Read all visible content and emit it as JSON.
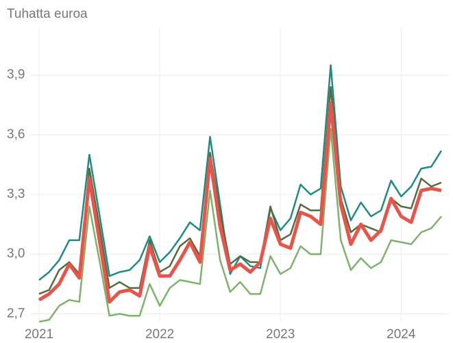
{
  "chart_data": {
    "type": "line",
    "y_label": "Tuhatta euroa",
    "categories": [
      "2021",
      null,
      null,
      null,
      null,
      null,
      null,
      null,
      null,
      null,
      null,
      null,
      "2022",
      null,
      null,
      null,
      null,
      null,
      null,
      null,
      null,
      null,
      null,
      null,
      "2023",
      null,
      null,
      null,
      null,
      null,
      null,
      null,
      null,
      null,
      null,
      null,
      "2024",
      null,
      null,
      null,
      null
    ],
    "series": [
      {
        "color": "#1f8a82",
        "width": 2.5,
        "values": [
          2.87,
          2.91,
          2.97,
          3.07,
          3.07,
          3.5,
          3.2,
          2.89,
          2.91,
          2.92,
          2.97,
          3.09,
          2.96,
          3.01,
          3.08,
          3.16,
          3.12,
          3.59,
          3.25,
          2.9,
          2.99,
          2.94,
          2.93,
          3.23,
          3.12,
          3.18,
          3.35,
          3.3,
          3.33,
          3.95,
          3.34,
          3.17,
          3.26,
          3.19,
          3.22,
          3.37,
          3.29,
          3.34,
          3.43,
          3.44,
          3.52
        ]
      },
      {
        "color": "#7db36a",
        "width": 2.5,
        "values": [
          2.66,
          2.67,
          2.74,
          2.77,
          2.76,
          3.24,
          2.97,
          2.69,
          2.7,
          2.69,
          2.69,
          2.85,
          2.74,
          2.83,
          2.87,
          2.86,
          2.85,
          3.32,
          2.97,
          2.81,
          2.86,
          2.8,
          2.8,
          2.99,
          2.9,
          2.93,
          3.04,
          3.0,
          3.0,
          3.63,
          3.07,
          2.92,
          2.98,
          2.93,
          2.96,
          3.07,
          3.06,
          3.05,
          3.11,
          3.13,
          3.19
        ]
      },
      {
        "color": "#556b3d",
        "width": 2.5,
        "values": [
          2.8,
          2.82,
          2.92,
          2.96,
          2.9,
          3.43,
          3.14,
          2.83,
          2.86,
          2.83,
          2.83,
          3.07,
          2.91,
          2.94,
          3.04,
          3.08,
          2.99,
          3.51,
          3.21,
          2.95,
          2.99,
          2.96,
          2.96,
          3.24,
          3.07,
          3.1,
          3.25,
          3.22,
          3.22,
          3.84,
          3.28,
          3.11,
          3.15,
          3.13,
          3.11,
          3.28,
          3.24,
          3.23,
          3.38,
          3.34,
          3.36
        ]
      },
      {
        "color": "#e8534a",
        "width": 5,
        "values": [
          2.77,
          2.8,
          2.85,
          2.95,
          2.88,
          3.38,
          3.07,
          2.76,
          2.81,
          2.82,
          2.79,
          3.04,
          2.89,
          2.89,
          2.97,
          3.06,
          2.96,
          3.48,
          3.14,
          2.92,
          2.95,
          2.91,
          2.96,
          3.18,
          3.05,
          3.03,
          3.21,
          3.19,
          3.15,
          3.76,
          3.25,
          3.05,
          3.15,
          3.07,
          3.12,
          3.28,
          3.19,
          3.16,
          3.32,
          3.33,
          3.32
        ]
      }
    ],
    "ylim": [
      2.66,
      4.14
    ],
    "yticks": [
      {
        "value": 2.7,
        "label": "2,7"
      },
      {
        "value": 3.0,
        "label": "3,0"
      },
      {
        "value": 3.3,
        "label": "3,3"
      },
      {
        "value": 3.6,
        "label": "3,6"
      },
      {
        "value": 3.9,
        "label": "3,9"
      }
    ],
    "grid": true
  }
}
